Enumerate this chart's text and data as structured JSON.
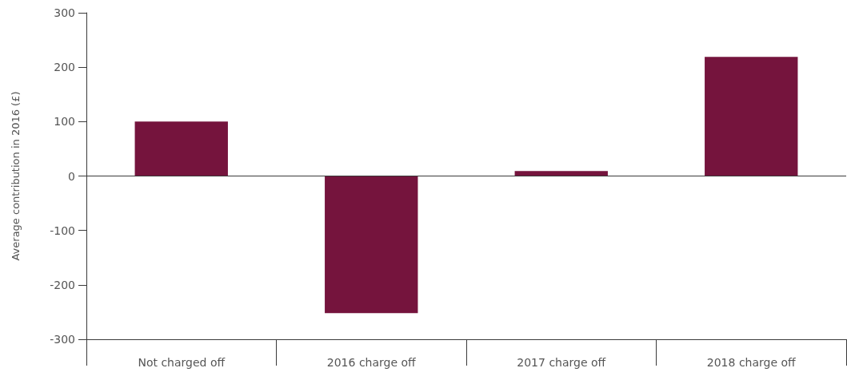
{
  "chart_data": {
    "type": "bar",
    "ylabel": "Average contribution in 2016 (£)",
    "categories": [
      "Not charged off",
      "2016 charge off",
      "2017 charge off",
      "2018 charge off"
    ],
    "values": [
      100,
      -252,
      9,
      219
    ],
    "color": "#75143d",
    "ylim": [
      -300,
      300
    ],
    "yticks": [
      -300,
      -200,
      -100,
      0,
      100,
      200,
      300
    ],
    "grid": false,
    "ref_lines": [
      {
        "axis": "y",
        "value": 0,
        "color": "#3a3a3a"
      }
    ]
  }
}
